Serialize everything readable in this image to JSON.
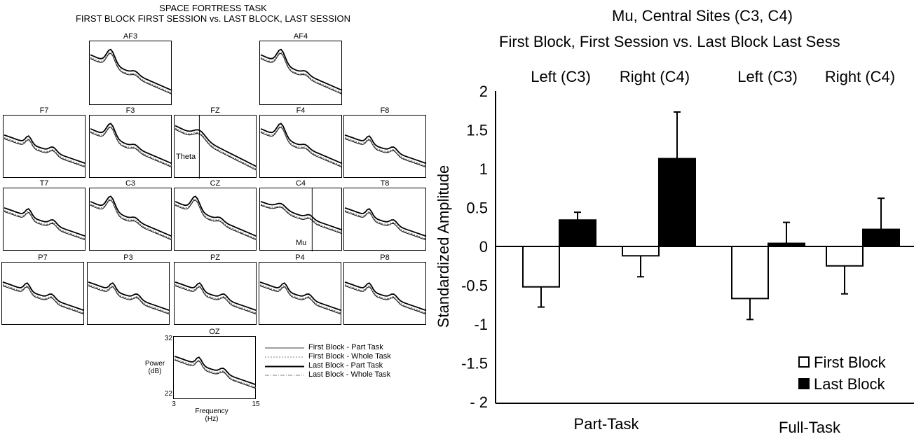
{
  "left_figure": {
    "title_line1": "SPACE FORTRESS TASK",
    "title_line2": "FIRST BLOCK FIRST SESSION vs. LAST BLOCK, LAST SESSION",
    "sites": {
      "af3": "AF3",
      "af4": "AF4",
      "f7": "F7",
      "f3": "F3",
      "fz": "FZ",
      "f4": "F4",
      "f8": "F8",
      "t7": "T7",
      "c3": "C3",
      "cz": "CZ",
      "c4": "C4",
      "t8": "T8",
      "p7": "P7",
      "p3": "P3",
      "pz": "PZ",
      "p4": "P4",
      "p8": "P8",
      "oz": "OZ"
    },
    "theta_label": "Theta",
    "mu_label": "Mu",
    "oz_axes": {
      "y_label_line1": "Power",
      "y_label_line2": "(dB)",
      "y_max": "32",
      "y_min": "22",
      "x_min": "3",
      "x_max": "15",
      "x_label_line1": "Frequency",
      "x_label_line2": "(Hz)"
    },
    "legend": [
      "First Block - Part Task",
      "First Block - Whole Task",
      "Last Block - Part Task",
      "Last Block - Whole Task"
    ]
  },
  "chart_data": {
    "type": "bar",
    "title": "Mu, Central Sites (C3, C4)",
    "subtitle": "First Block, First Session vs. Last Block Last Sess",
    "ylabel": "Standardized Amplitude",
    "ylim": [
      -2,
      2
    ],
    "yticks": [
      "2",
      "1.5",
      "1",
      "0.5",
      "0",
      "-0.5",
      "-1",
      "-1.5",
      "- 2"
    ],
    "groups": [
      "Part-Task",
      "Full-Task"
    ],
    "categories": [
      "Left (C3)",
      "Right (C4)",
      "Left (C3)",
      "Right (C4)"
    ],
    "series": [
      {
        "name": "First Block",
        "values": [
          -0.52,
          -0.12,
          -0.67,
          -0.25
        ],
        "errors": [
          0.26,
          0.27,
          0.27,
          0.36
        ],
        "color": "#ffffff"
      },
      {
        "name": "Last Block",
        "values": [
          0.34,
          1.13,
          0.04,
          0.22
        ],
        "errors": [
          0.1,
          0.6,
          0.27,
          0.4
        ],
        "color": "#000000"
      }
    ],
    "grid": false,
    "legend_position": "bottom-right"
  }
}
